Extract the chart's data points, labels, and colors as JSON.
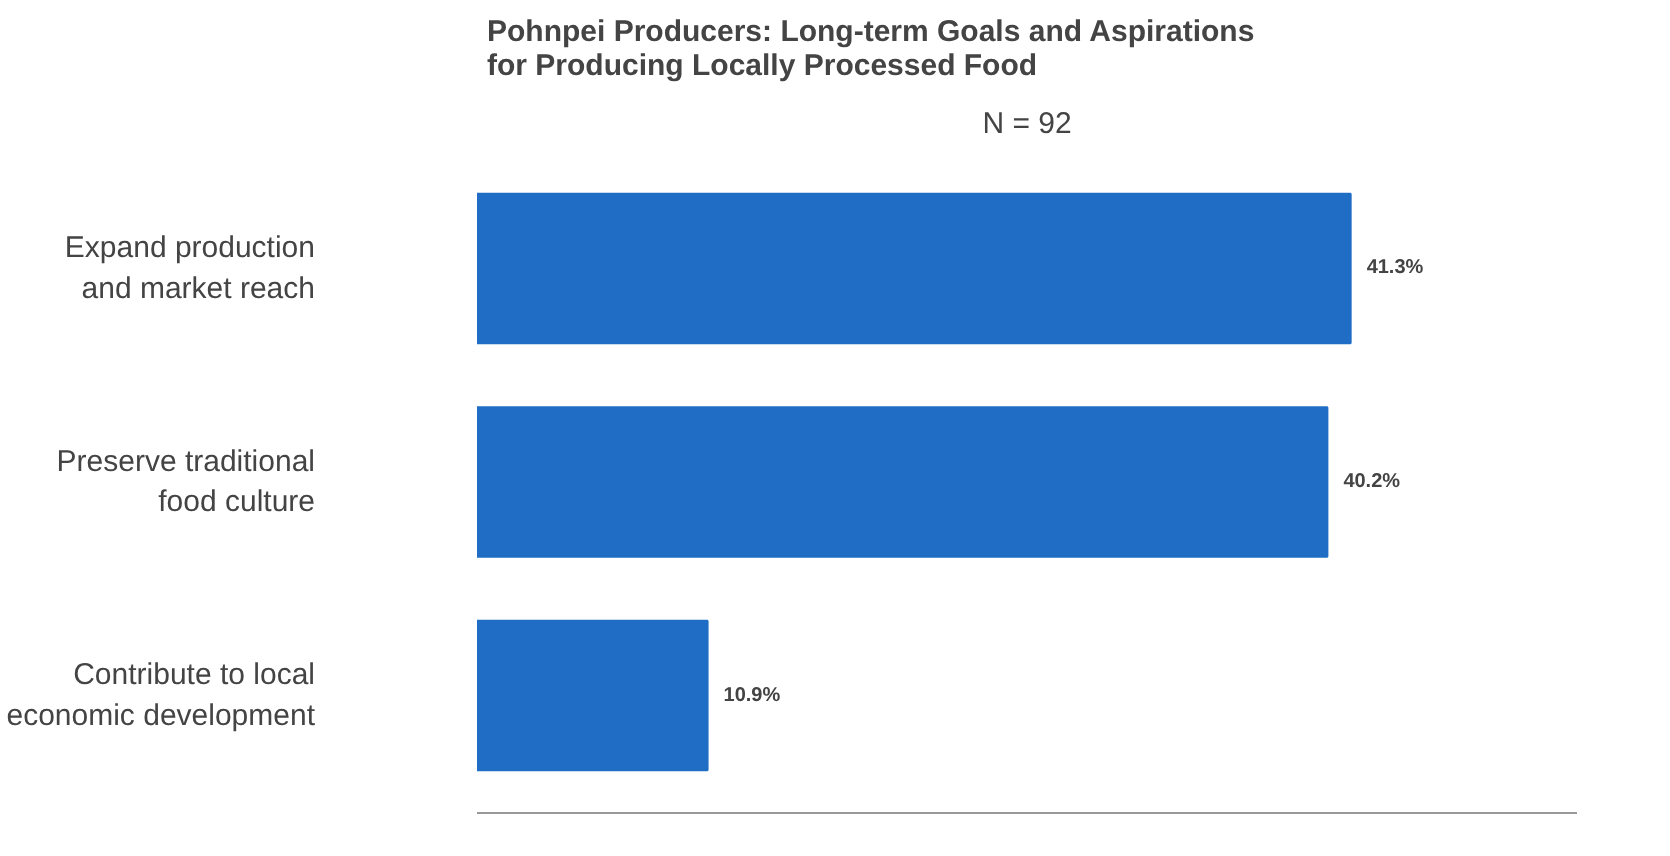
{
  "chart_data": {
    "type": "bar",
    "orientation": "horizontal",
    "title": "Pohnpei Producers: Long-term Goals and Aspirations\nfor Producing Locally Processed Food",
    "subtitle": "N = 92",
    "categories": [
      "Expand production\nand market reach",
      "Preserve traditional\nfood culture",
      "Contribute to local\neconomic development"
    ],
    "values": [
      41.3,
      40.2,
      10.9
    ],
    "value_labels": [
      "41.3%",
      "40.2%",
      "10.9%"
    ],
    "color": "#1f6dc4",
    "xlim": [
      0,
      52
    ],
    "tick_labels": "y",
    "grid": false
  }
}
